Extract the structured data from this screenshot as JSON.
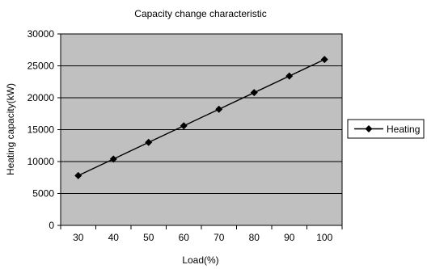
{
  "chart_data": {
    "type": "line",
    "title": "Capacity change characteristic",
    "xlabel": "Load(%)",
    "ylabel": "Heating capacity(kW)",
    "x": [
      30,
      40,
      50,
      60,
      70,
      80,
      90,
      100
    ],
    "series": [
      {
        "name": "Heating",
        "values": [
          7800,
          10400,
          13000,
          15600,
          18200,
          20800,
          23400,
          26000
        ]
      }
    ],
    "yticks": [
      0,
      5000,
      10000,
      15000,
      20000,
      25000,
      30000
    ],
    "ylim": [
      0,
      30000
    ],
    "grid": true,
    "legend": "right",
    "colors": {
      "plot_background": "#c0c0c0",
      "line": "#000000",
      "gridline": "#000000"
    }
  }
}
